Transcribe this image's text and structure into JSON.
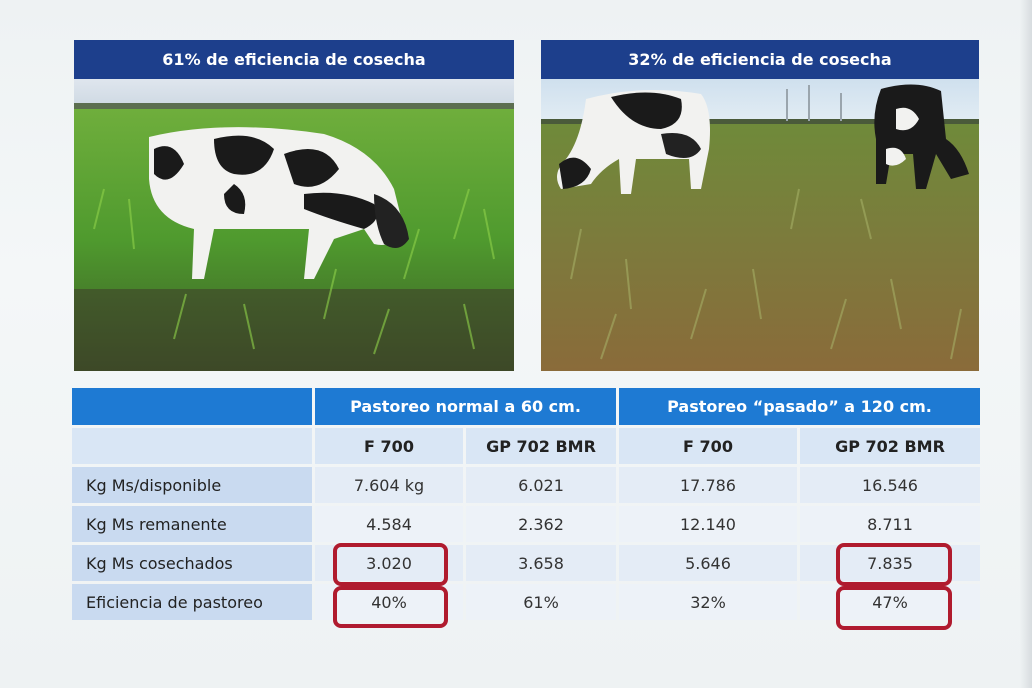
{
  "panels": [
    {
      "title": "61% de eficiencia de cosecha"
    },
    {
      "title": "32% de eficiencia de cosecha"
    }
  ],
  "table": {
    "header_groups": [
      "",
      "Pastoreo normal a 60 cm.",
      "Pastoreo “pasado” a 120 cm."
    ],
    "columns": [
      "",
      "F 700",
      "GP 702 BMR",
      "F 700",
      "GP 702 BMR"
    ],
    "rows": [
      {
        "label": "Kg Ms/disponible",
        "values": [
          "7.604 kg",
          "6.021",
          "17.786",
          "16.546"
        ]
      },
      {
        "label": "Kg Ms remanente",
        "values": [
          "4.584",
          "2.362",
          "12.140",
          "8.711"
        ]
      },
      {
        "label": "Kg Ms cosechados",
        "values": [
          "3.020",
          "3.658",
          "5.646",
          "7.835"
        ]
      },
      {
        "label": "Eficiencia de pastoreo",
        "values": [
          "40%",
          "61%",
          "32%",
          "47%"
        ]
      }
    ]
  },
  "colors": {
    "title_bar": "#1d3f8c",
    "header_bar": "#1e7ad3",
    "highlight": "#b01b2e"
  }
}
